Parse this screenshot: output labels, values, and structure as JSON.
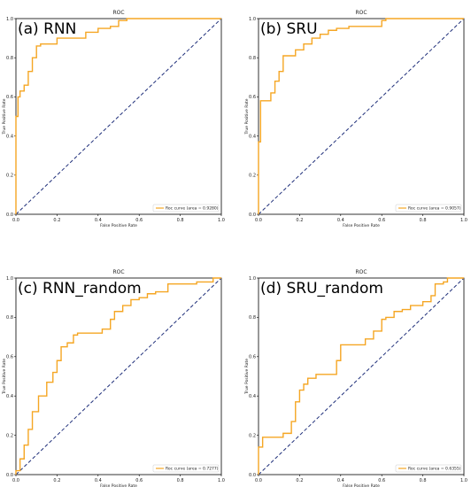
{
  "colors": {
    "roc": "#f5a623",
    "diagonal": "#1f2f7a",
    "axis": "#000000",
    "legend_border": "#cccccc"
  },
  "chart_data": [
    {
      "type": "line",
      "panel_label": "(a) RNN",
      "title": "ROC",
      "xlabel": "False Positive Rate",
      "ylabel": "True Positive Rate",
      "xlim": [
        0,
        1
      ],
      "ylim": [
        0,
        1
      ],
      "xticks": [
        "0.0",
        "0.2",
        "0.4",
        "0.6",
        "0.8",
        "1.0"
      ],
      "yticks": [
        "0.0",
        "0.2",
        "0.4",
        "0.6",
        "0.8",
        "1.0"
      ],
      "legend": "Roc curve (area = 0.9280)",
      "legend_position": "lower-right",
      "diagonal": true,
      "series": [
        {
          "name": "Roc curve (area = 0.9280)",
          "x": [
            0,
            0,
            0.01,
            0.01,
            0.02,
            0.02,
            0.04,
            0.04,
            0.06,
            0.06,
            0.08,
            0.08,
            0.1,
            0.1,
            0.12,
            0.12,
            0.2,
            0.2,
            0.34,
            0.34,
            0.4,
            0.4,
            0.46,
            0.46,
            0.5,
            0.5,
            0.54,
            0.54,
            1.0
          ],
          "y": [
            0,
            0.5,
            0.5,
            0.6,
            0.6,
            0.63,
            0.63,
            0.66,
            0.66,
            0.73,
            0.73,
            0.8,
            0.8,
            0.86,
            0.86,
            0.87,
            0.87,
            0.9,
            0.9,
            0.93,
            0.93,
            0.95,
            0.95,
            0.96,
            0.96,
            0.99,
            0.99,
            1.0,
            1.0
          ]
        }
      ]
    },
    {
      "type": "line",
      "panel_label": "(b) SRU",
      "title": "ROC",
      "xlabel": "False Positive Rate",
      "ylabel": "True Positive Rate",
      "xlim": [
        0,
        1
      ],
      "ylim": [
        0,
        1
      ],
      "xticks": [
        "0.0",
        "0.2",
        "0.4",
        "0.6",
        "0.8",
        "1.0"
      ],
      "yticks": [
        "0.0",
        "0.2",
        "0.4",
        "0.6",
        "0.8",
        "1.0"
      ],
      "legend": "Roc curve (area = 0.9057)",
      "legend_position": "lower-right",
      "diagonal": true,
      "series": [
        {
          "name": "Roc curve (area = 0.9057)",
          "x": [
            0,
            0,
            0.01,
            0.01,
            0.06,
            0.06,
            0.08,
            0.08,
            0.1,
            0.1,
            0.12,
            0.12,
            0.18,
            0.18,
            0.22,
            0.22,
            0.26,
            0.26,
            0.3,
            0.3,
            0.34,
            0.34,
            0.38,
            0.38,
            0.44,
            0.44,
            0.6,
            0.6,
            0.62,
            0.62,
            1.0
          ],
          "y": [
            0,
            0.37,
            0.37,
            0.58,
            0.58,
            0.62,
            0.62,
            0.68,
            0.68,
            0.73,
            0.73,
            0.81,
            0.81,
            0.84,
            0.84,
            0.87,
            0.87,
            0.9,
            0.9,
            0.92,
            0.92,
            0.94,
            0.94,
            0.95,
            0.95,
            0.96,
            0.96,
            0.99,
            0.99,
            1.0,
            1.0
          ]
        }
      ]
    },
    {
      "type": "line",
      "panel_label": "(c) RNN_random",
      "title": "ROC",
      "xlabel": "False Positive Rate",
      "ylabel": "True Positive Rate",
      "xlim": [
        0,
        1
      ],
      "ylim": [
        0,
        1
      ],
      "xticks": [
        "0.0",
        "0.2",
        "0.4",
        "0.6",
        "0.8",
        "1.0"
      ],
      "yticks": [
        "0.0",
        "0.2",
        "0.4",
        "0.6",
        "0.8",
        "1.0"
      ],
      "legend": "Roc curve (area = 0.7277)",
      "legend_position": "lower-right",
      "diagonal": true,
      "series": [
        {
          "name": "Roc curve (area = 0.7277)",
          "x": [
            0,
            0,
            0.02,
            0.02,
            0.04,
            0.04,
            0.06,
            0.06,
            0.08,
            0.08,
            0.11,
            0.11,
            0.15,
            0.15,
            0.18,
            0.18,
            0.2,
            0.2,
            0.22,
            0.22,
            0.25,
            0.25,
            0.28,
            0.28,
            0.3,
            0.3,
            0.42,
            0.42,
            0.46,
            0.46,
            0.48,
            0.48,
            0.52,
            0.52,
            0.56,
            0.56,
            0.6,
            0.6,
            0.64,
            0.64,
            0.68,
            0.68,
            0.74,
            0.74,
            0.88,
            0.88,
            0.96,
            0.96,
            1.0
          ],
          "y": [
            0,
            0.02,
            0.02,
            0.08,
            0.08,
            0.15,
            0.15,
            0.23,
            0.23,
            0.32,
            0.32,
            0.4,
            0.4,
            0.47,
            0.47,
            0.52,
            0.52,
            0.58,
            0.58,
            0.65,
            0.65,
            0.67,
            0.67,
            0.71,
            0.71,
            0.72,
            0.72,
            0.74,
            0.74,
            0.79,
            0.79,
            0.83,
            0.83,
            0.86,
            0.86,
            0.89,
            0.89,
            0.9,
            0.9,
            0.92,
            0.92,
            0.93,
            0.93,
            0.97,
            0.97,
            0.98,
            0.98,
            1.0,
            1.0
          ]
        }
      ]
    },
    {
      "type": "line",
      "panel_label": "(d) SRU_random",
      "title": "ROC",
      "xlabel": "False Positive Rate",
      "ylabel": "True Positive Rate",
      "xlim": [
        0,
        1
      ],
      "ylim": [
        0,
        1
      ],
      "xticks": [
        "0.0",
        "0.2",
        "0.4",
        "0.6",
        "0.8",
        "1.0"
      ],
      "yticks": [
        "0.0",
        "0.2",
        "0.4",
        "0.6",
        "0.8",
        "1.0"
      ],
      "legend": "Roc curve (area = 0.6355)",
      "legend_position": "lower-right",
      "diagonal": true,
      "series": [
        {
          "name": "Roc curve (area = 0.6355)",
          "x": [
            0,
            0,
            0.02,
            0.02,
            0.12,
            0.12,
            0.16,
            0.16,
            0.18,
            0.18,
            0.2,
            0.2,
            0.22,
            0.22,
            0.24,
            0.24,
            0.28,
            0.28,
            0.38,
            0.38,
            0.4,
            0.4,
            0.52,
            0.52,
            0.56,
            0.56,
            0.6,
            0.6,
            0.62,
            0.62,
            0.66,
            0.66,
            0.7,
            0.7,
            0.74,
            0.74,
            0.8,
            0.8,
            0.84,
            0.84,
            0.86,
            0.86,
            0.9,
            0.9,
            0.92,
            0.92,
            1.0
          ],
          "y": [
            0,
            0.14,
            0.14,
            0.19,
            0.19,
            0.21,
            0.21,
            0.27,
            0.27,
            0.37,
            0.37,
            0.43,
            0.43,
            0.46,
            0.46,
            0.49,
            0.49,
            0.51,
            0.51,
            0.58,
            0.58,
            0.66,
            0.66,
            0.69,
            0.69,
            0.73,
            0.73,
            0.79,
            0.79,
            0.8,
            0.8,
            0.83,
            0.83,
            0.84,
            0.84,
            0.86,
            0.86,
            0.88,
            0.88,
            0.91,
            0.91,
            0.97,
            0.97,
            0.98,
            0.98,
            1.0,
            1.0
          ]
        }
      ]
    }
  ]
}
